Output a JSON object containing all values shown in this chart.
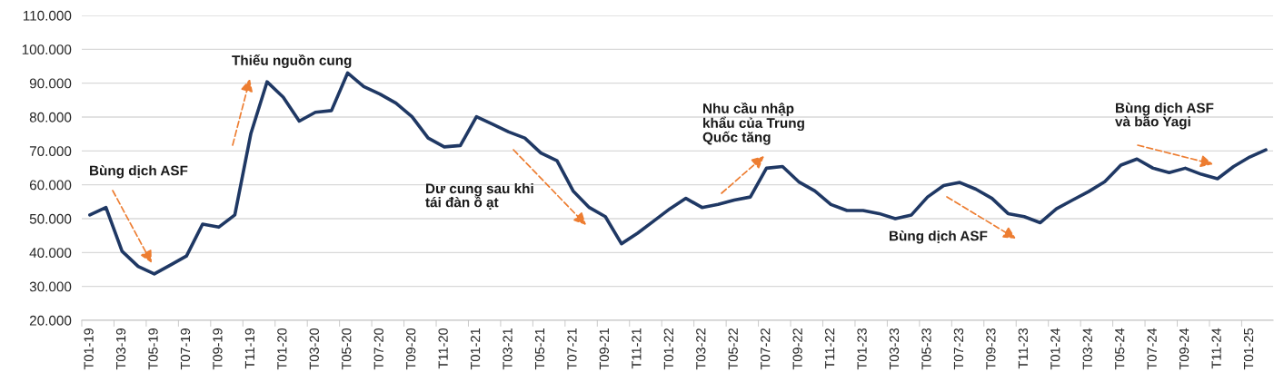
{
  "chart_data": {
    "type": "line",
    "categories": [
      "T01-19",
      null,
      "T03-19",
      null,
      "T05-19",
      null,
      "T07-19",
      null,
      "T09-19",
      null,
      "T11-19",
      null,
      "T01-20",
      null,
      "T03-20",
      null,
      "T05-20",
      null,
      "T07-20",
      null,
      "T09-20",
      null,
      "T11-20",
      null,
      "T01-21",
      null,
      "T03-21",
      null,
      "T05-21",
      null,
      "T07-21",
      null,
      "T09-21",
      null,
      "T11-21",
      null,
      "T01-22",
      null,
      "T03-22",
      null,
      "T05-22",
      null,
      "T07-22",
      null,
      "T09-22",
      null,
      "T11-22",
      null,
      "T01-23",
      null,
      "T03-23",
      null,
      "T05-23",
      null,
      "T07-23",
      null,
      "T09-23",
      null,
      "T11-23",
      null,
      "T01-24",
      null,
      "T03-24",
      null,
      "T05-24",
      null,
      "T07-24",
      null,
      "T09-24",
      null,
      "T11-24",
      null,
      "T01-25",
      null
    ],
    "series": [
      {
        "color": "#1f3864",
        "values": [
          51100,
          53300,
          40400,
          35900,
          33700,
          36300,
          39000,
          48400,
          47500,
          51100,
          75200,
          90400,
          85900,
          78800,
          81400,
          81900,
          93000,
          89000,
          86800,
          84100,
          80100,
          73800,
          71200,
          71600,
          80100,
          77900,
          75600,
          73800,
          69400,
          67100,
          58200,
          53300,
          50600,
          42600,
          45700,
          49300,
          52900,
          56000,
          53300,
          54200,
          55500,
          56400,
          64900,
          65400,
          60900,
          58200,
          54200,
          52400,
          52400,
          51500,
          50000,
          51100,
          56400,
          59800,
          60700,
          58700,
          56000,
          51500,
          50600,
          48800,
          52900,
          55500,
          58000,
          60900,
          65800,
          67600,
          64900,
          63600,
          64900,
          63100,
          61800,
          65400,
          68200,
          70300
        ]
      }
    ],
    "ylim": [
      20000,
      110000
    ],
    "yticks": [
      {
        "value": 20000,
        "label": "20.000"
      },
      {
        "value": 30000,
        "label": "30.000"
      },
      {
        "value": 40000,
        "label": "40.000"
      },
      {
        "value": 50000,
        "label": "50.000"
      },
      {
        "value": 60000,
        "label": "60.000"
      },
      {
        "value": 70000,
        "label": "70.000"
      },
      {
        "value": 80000,
        "label": "80.000"
      },
      {
        "value": 90000,
        "label": "90.000"
      },
      {
        "value": 100000,
        "label": "100.000"
      },
      {
        "value": 110000,
        "label": "110.000"
      }
    ],
    "grid": "y",
    "marker": "none",
    "line_style": "solid",
    "annotations": [
      "Bùng dịch ASF",
      "Thiếu nguồn cung",
      "Dư cung sau khi\ntái đàn ồ ạt",
      "Nhu cầu nhập\nkhẩu của Trung\nQuốc tăng",
      "Bùng dịch ASF",
      "Bùng dịch ASF\nvà bão Yagi"
    ]
  }
}
